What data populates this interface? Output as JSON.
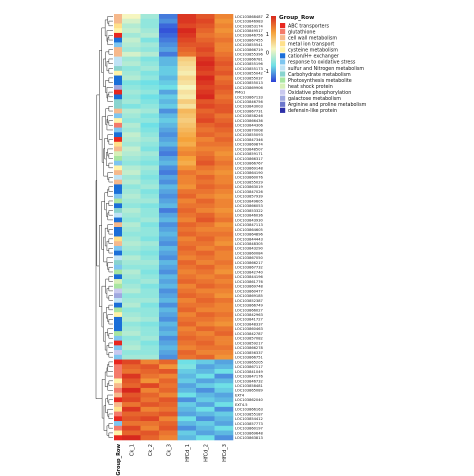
{
  "chart_data": {
    "type": "heatmap",
    "title": "",
    "columns": [
      "Group_Row",
      "Ck_1",
      "Ck_2",
      "Ck_3",
      "HfCd_1",
      "HfCd_2",
      "HfCd_3"
    ],
    "color_scale": {
      "ticks": [
        2,
        1,
        0,
        -1
      ],
      "low": "#2b3fd6",
      "mid_low": "#6fe0e6",
      "mid": "#f6f6c0",
      "mid_high": "#f5a23a",
      "high": "#d7281e"
    },
    "legend": {
      "title": "Group_Row",
      "entries": [
        {
          "name": "ABC transporters",
          "color": "#e8271f"
        },
        {
          "name": "glutathione",
          "color": "#f47a6a"
        },
        {
          "name": "cell wall metabolism",
          "color": "#f6b98c"
        },
        {
          "name": "metal ion transport",
          "color": "#ffe08a"
        },
        {
          "name": "cysteine metabolism",
          "color": "#fff3a8"
        },
        {
          "name": "cation/H+ exchanger",
          "color": "#1b6fd8"
        },
        {
          "name": "response to oxidative stress",
          "color": "#7ec6f0"
        },
        {
          "name": "sulfur and Nitrogen metabolism",
          "color": "#bfe3f5"
        },
        {
          "name": "Carbohydrate metabolism",
          "color": "#89d4cf"
        },
        {
          "name": "Photosynthesis metabolite",
          "color": "#a8e6a1"
        },
        {
          "name": "heat shock protein",
          "color": "#d7f0b8"
        },
        {
          "name": "Oxidative phosphorylation",
          "color": "#c9c9ef"
        },
        {
          "name": "galactose metabolism",
          "color": "#9fa8e0"
        },
        {
          "name": "Arginine and proline metabolism",
          "color": "#6b76cc"
        },
        {
          "name": "defensin-like protein",
          "color": "#2c2fa8"
        }
      ]
    },
    "rows": [
      {
        "label": "LOC103868487",
        "group": 3,
        "values": [
          0.0,
          -0.5,
          -1.3,
          1.5,
          1.3,
          1.0
        ]
      },
      {
        "label": "LOC103846983",
        "group": 3,
        "values": [
          -0.2,
          -0.6,
          -1.2,
          1.5,
          1.4,
          0.9
        ]
      },
      {
        "label": "LOC103853174",
        "group": 4,
        "values": [
          -0.4,
          -0.6,
          -1.4,
          1.4,
          1.3,
          1.0
        ]
      },
      {
        "label": "LOC103849517",
        "group": 5,
        "values": [
          -0.3,
          -0.5,
          -1.5,
          1.6,
          1.2,
          0.9
        ]
      },
      {
        "label": "LOC103846756",
        "group": 1,
        "values": [
          -0.5,
          -0.4,
          -1.4,
          1.5,
          1.1,
          1.0
        ]
      },
      {
        "label": "LOC103867455",
        "group": 6,
        "values": [
          -0.3,
          -0.7,
          -1.3,
          1.4,
          1.2,
          1.1
        ]
      },
      {
        "label": "LOC103855541",
        "group": 7,
        "values": [
          -0.4,
          -0.5,
          -1.2,
          1.3,
          1.3,
          1.0
        ]
      },
      {
        "label": "LOC103866719",
        "group": 3,
        "values": [
          -0.5,
          -0.6,
          -1.1,
          1.2,
          1.4,
          1.0
        ]
      },
      {
        "label": "LOC103855396",
        "group": 3,
        "values": [
          -0.2,
          -0.4,
          -1.3,
          1.1,
          1.3,
          1.1
        ]
      },
      {
        "label": "LOC103866781",
        "group": 8,
        "values": [
          -0.5,
          -0.7,
          -1.0,
          0.4,
          1.5,
          1.2
        ]
      },
      {
        "label": "LOC103855196",
        "group": 8,
        "values": [
          -0.4,
          -0.6,
          -1.0,
          0.3,
          1.6,
          1.3
        ]
      },
      {
        "label": "LOC103855173",
        "group": 9,
        "values": [
          -0.6,
          -0.5,
          -0.9,
          0.2,
          1.5,
          1.2
        ]
      },
      {
        "label": "LOC103855042",
        "group": 5,
        "values": [
          -0.5,
          -0.7,
          -0.9,
          0.1,
          1.4,
          1.3
        ]
      },
      {
        "label": "LOC103855037",
        "group": 6,
        "values": [
          -0.4,
          -0.6,
          -1.0,
          0.3,
          1.6,
          1.1
        ]
      },
      {
        "label": "LOC103855013",
        "group": 6,
        "values": [
          -0.7,
          -0.8,
          -0.9,
          0.2,
          1.5,
          1.2
        ]
      },
      {
        "label": "LOC103869906",
        "group": 13,
        "values": [
          -0.6,
          -0.7,
          -0.8,
          0.0,
          1.4,
          1.3
        ]
      },
      {
        "label": "PMG1",
        "group": 1,
        "values": [
          -0.5,
          -0.6,
          -1.1,
          0.2,
          1.5,
          1.2
        ]
      },
      {
        "label": "LOC103867133",
        "group": 6,
        "values": [
          -0.6,
          -0.8,
          -0.9,
          0.1,
          1.6,
          1.1
        ]
      },
      {
        "label": "LOC103846756",
        "group": 9,
        "values": [
          -0.5,
          -0.7,
          -1.0,
          0.4,
          1.3,
          1.2
        ]
      },
      {
        "label": "LOC103843003",
        "group": 9,
        "values": [
          -0.7,
          -0.6,
          -0.9,
          0.2,
          1.4,
          1.3
        ]
      },
      {
        "label": "LOC103867731",
        "group": 3,
        "values": [
          -0.4,
          -0.5,
          -1.2,
          0.6,
          1.2,
          1.3
        ]
      },
      {
        "label": "LOC103858246",
        "group": 7,
        "values": [
          -0.5,
          -0.7,
          -1.0,
          0.5,
          1.3,
          1.1
        ]
      },
      {
        "label": "LOC103866436",
        "group": 5,
        "values": [
          -0.6,
          -0.6,
          -0.9,
          0.4,
          1.4,
          1.2
        ]
      },
      {
        "label": "LOC103844306",
        "group": 2,
        "values": [
          -0.4,
          -0.8,
          -1.0,
          0.5,
          1.2,
          1.3
        ]
      },
      {
        "label": "LOC103870008",
        "group": 7,
        "values": [
          -0.5,
          -0.7,
          -1.1,
          0.6,
          1.1,
          1.2
        ]
      },
      {
        "label": "LOC103855093",
        "group": 6,
        "values": [
          -0.3,
          -0.6,
          -1.2,
          0.7,
          1.2,
          1.1
        ]
      },
      {
        "label": "LOC103847346",
        "group": 1,
        "values": [
          -0.4,
          -0.5,
          -1.1,
          0.8,
          1.0,
          1.2
        ]
      },
      {
        "label": "LOC103869874",
        "group": 4,
        "values": [
          -0.5,
          -0.6,
          -1.0,
          0.7,
          1.1,
          1.1
        ]
      },
      {
        "label": "LOC103848507",
        "group": 3,
        "values": [
          -0.3,
          -0.7,
          -1.2,
          0.9,
          1.0,
          1.0
        ]
      },
      {
        "label": "LOC103859171",
        "group": 11,
        "values": [
          -0.4,
          -0.5,
          -1.3,
          1.0,
          1.1,
          0.9
        ]
      },
      {
        "label": "LOC103866317",
        "group": 10,
        "values": [
          -0.5,
          -0.6,
          -1.1,
          0.8,
          1.2,
          1.0
        ]
      },
      {
        "label": "LOC103866767",
        "group": 7,
        "values": [
          -0.6,
          -0.7,
          -1.0,
          0.7,
          1.3,
          1.1
        ]
      },
      {
        "label": "LOC103869148",
        "group": 5,
        "values": [
          -0.4,
          -0.5,
          -1.2,
          0.9,
          1.1,
          1.0
        ]
      },
      {
        "label": "LOC103864190",
        "group": 3,
        "values": [
          -0.3,
          -0.6,
          -1.3,
          1.1,
          1.0,
          0.9
        ]
      },
      {
        "label": "LOC103860076",
        "group": 8,
        "values": [
          -0.5,
          -0.7,
          -1.1,
          1.0,
          1.2,
          1.0
        ]
      },
      {
        "label": "LOC103855029",
        "group": 3,
        "values": [
          -0.4,
          -0.6,
          -1.2,
          1.0,
          1.1,
          1.0
        ]
      },
      {
        "label": "LOC103863019",
        "group": 6,
        "values": [
          -0.6,
          -0.5,
          -1.0,
          0.9,
          1.2,
          1.1
        ]
      },
      {
        "label": "LOC103847026",
        "group": 6,
        "values": [
          -0.5,
          -0.7,
          -1.1,
          1.1,
          1.1,
          1.0
        ]
      },
      {
        "label": "LOC103857939",
        "group": 7,
        "values": [
          -0.4,
          -0.6,
          -1.2,
          1.2,
          1.0,
          0.9
        ]
      },
      {
        "label": "LOC103849605",
        "group": 10,
        "values": [
          -0.5,
          -0.5,
          -1.1,
          1.0,
          1.2,
          1.0
        ]
      },
      {
        "label": "LOC103866053",
        "group": 6,
        "values": [
          -0.6,
          -0.7,
          -1.0,
          1.1,
          1.1,
          1.0
        ]
      },
      {
        "label": "LOC103853322",
        "group": 9,
        "values": [
          -0.4,
          -0.6,
          -1.3,
          1.2,
          1.0,
          0.9
        ]
      },
      {
        "label": "LOC103846036",
        "group": 8,
        "values": [
          -0.5,
          -0.6,
          -1.1,
          1.1,
          1.2,
          1.0
        ]
      },
      {
        "label": "LOC103843930",
        "group": 6,
        "values": [
          -0.6,
          -0.5,
          -1.0,
          1.0,
          1.3,
          1.1
        ]
      },
      {
        "label": "LOC103847113",
        "group": 3,
        "values": [
          -0.4,
          -0.7,
          -1.2,
          1.2,
          1.1,
          0.9
        ]
      },
      {
        "label": "LOC103864605",
        "group": 6,
        "values": [
          -0.5,
          -0.6,
          -1.1,
          1.1,
          1.0,
          1.0
        ]
      },
      {
        "label": "LOC103864896",
        "group": 6,
        "values": [
          -0.6,
          -0.6,
          -1.0,
          1.2,
          1.1,
          1.1
        ]
      },
      {
        "label": "LOC103844443",
        "group": 4,
        "values": [
          -0.5,
          -0.7,
          -1.1,
          1.0,
          1.2,
          1.0
        ]
      },
      {
        "label": "LOC103848305",
        "group": 3,
        "values": [
          -0.4,
          -0.5,
          -1.2,
          1.1,
          1.1,
          0.9
        ]
      },
      {
        "label": "LOC103843290",
        "group": 7,
        "values": [
          -0.5,
          -0.6,
          -1.0,
          1.2,
          1.0,
          1.1
        ]
      },
      {
        "label": "LOC103860084",
        "group": 6,
        "values": [
          -0.6,
          -0.7,
          -1.1,
          1.1,
          1.2,
          1.0
        ]
      },
      {
        "label": "LOC103867050",
        "group": 8,
        "values": [
          -0.4,
          -0.6,
          -1.2,
          1.0,
          1.1,
          1.0
        ]
      },
      {
        "label": "LOC103866217",
        "group": 9,
        "values": [
          -0.5,
          -0.5,
          -1.0,
          1.2,
          1.0,
          1.1
        ]
      },
      {
        "label": "LOC103867732",
        "group": 7,
        "values": [
          -0.6,
          -0.6,
          -1.1,
          1.1,
          1.2,
          1.0
        ]
      },
      {
        "label": "LOC103842740",
        "group": 10,
        "values": [
          -0.4,
          -0.7,
          -1.2,
          1.0,
          1.1,
          0.9
        ]
      },
      {
        "label": "LOC103844196",
        "group": 6,
        "values": [
          -0.5,
          -0.6,
          -1.0,
          1.1,
          1.0,
          1.1
        ]
      },
      {
        "label": "LOC103861776",
        "group": 11,
        "values": [
          -0.6,
          -0.5,
          -1.1,
          1.2,
          1.1,
          1.0
        ]
      },
      {
        "label": "LOC103869748",
        "group": 10,
        "values": [
          -0.5,
          -0.7,
          -1.0,
          1.0,
          1.2,
          1.1
        ]
      },
      {
        "label": "LOC103860477",
        "group": 12,
        "values": [
          -0.4,
          -0.6,
          -1.2,
          1.1,
          1.0,
          1.0
        ]
      },
      {
        "label": "LOC103869185",
        "group": 13,
        "values": [
          -0.6,
          -0.6,
          -1.1,
          1.2,
          1.1,
          0.9
        ]
      },
      {
        "label": "LOC103852387",
        "group": 8,
        "values": [
          -0.5,
          -0.5,
          -1.0,
          1.0,
          1.2,
          1.1
        ]
      },
      {
        "label": "LOC103866749",
        "group": 6,
        "values": [
          -0.4,
          -0.7,
          -1.2,
          1.1,
          1.1,
          1.0
        ]
      },
      {
        "label": "LOC103866027",
        "group": 10,
        "values": [
          -0.6,
          -0.6,
          -1.0,
          1.2,
          1.0,
          1.0
        ]
      },
      {
        "label": "LOC103842963",
        "group": 5,
        "values": [
          -0.5,
          -0.6,
          -1.1,
          1.0,
          1.2,
          1.1
        ]
      },
      {
        "label": "LOC103841727",
        "group": 6,
        "values": [
          -0.4,
          -0.5,
          -1.2,
          1.1,
          1.1,
          1.0
        ]
      },
      {
        "label": "LOC103848337",
        "group": 6,
        "values": [
          -0.6,
          -0.7,
          -1.0,
          1.2,
          1.0,
          0.9
        ]
      },
      {
        "label": "LOC103860463",
        "group": 6,
        "values": [
          -0.5,
          -0.6,
          -1.1,
          1.0,
          1.2,
          1.1
        ]
      },
      {
        "label": "LOC103842787",
        "group": 10,
        "values": [
          -0.4,
          -0.6,
          -1.0,
          1.1,
          1.0,
          1.2
        ]
      },
      {
        "label": "LOC103857082",
        "group": 7,
        "values": [
          -0.6,
          -0.5,
          -1.2,
          1.2,
          1.1,
          1.0
        ]
      },
      {
        "label": "LOC103859217",
        "group": 1,
        "values": [
          -0.5,
          -0.7,
          -1.1,
          1.1,
          1.2,
          1.0
        ]
      },
      {
        "label": "LOC103866278",
        "group": 7,
        "values": [
          -0.4,
          -0.6,
          -1.0,
          1.0,
          1.1,
          1.1
        ]
      },
      {
        "label": "LOC103856337",
        "group": 12,
        "values": [
          -0.6,
          -0.6,
          -1.1,
          1.2,
          1.0,
          1.0
        ]
      },
      {
        "label": "LOC103866751",
        "group": 7,
        "values": [
          -0.5,
          -0.5,
          -1.2,
          1.1,
          1.2,
          0.9
        ]
      },
      {
        "label": "LOC103865205",
        "group": 1,
        "values": [
          1.4,
          1.0,
          1.2,
          -0.8,
          -0.9,
          -1.1
        ]
      },
      {
        "label": "LOC103867117",
        "group": 2,
        "values": [
          1.2,
          1.3,
          0.9,
          -0.7,
          -1.1,
          -1.0
        ]
      },
      {
        "label": "LOC103841049",
        "group": 2,
        "values": [
          1.1,
          1.2,
          1.3,
          -0.9,
          -1.0,
          -0.8
        ]
      },
      {
        "label": "LOC103847176",
        "group": 2,
        "values": [
          1.5,
          1.1,
          1.0,
          -1.0,
          -0.8,
          -1.2
        ]
      },
      {
        "label": "LOC103846732",
        "group": 5,
        "values": [
          1.3,
          0.9,
          1.2,
          -0.9,
          -1.1,
          -1.0
        ]
      },
      {
        "label": "LOC103858481",
        "group": 3,
        "values": [
          1.2,
          1.4,
          1.1,
          -1.1,
          -0.9,
          -0.8
        ]
      },
      {
        "label": "LOC103865089",
        "group": 2,
        "values": [
          1.6,
          1.0,
          1.2,
          -1.0,
          -1.2,
          -0.9
        ]
      },
      {
        "label": "EXT4",
        "group": 3,
        "values": [
          1.3,
          1.2,
          1.0,
          -0.8,
          -1.0,
          -1.1
        ]
      },
      {
        "label": "LOC103862040",
        "group": 1,
        "values": [
          1.4,
          1.1,
          1.3,
          -1.2,
          -0.9,
          -1.0
        ]
      },
      {
        "label": "EXT4.5",
        "group": 3,
        "values": [
          1.1,
          1.3,
          1.2,
          -0.9,
          -1.1,
          -0.8
        ]
      },
      {
        "label": "LOC103866163",
        "group": 4,
        "values": [
          1.5,
          1.0,
          1.1,
          -1.0,
          -0.8,
          -1.2
        ]
      },
      {
        "label": "LOC103855187",
        "group": 2,
        "values": [
          1.2,
          1.2,
          1.3,
          -1.1,
          -1.0,
          -0.9
        ]
      },
      {
        "label": "LOC103854412",
        "group": 1,
        "values": [
          1.3,
          1.4,
          1.0,
          -0.8,
          -1.2,
          -1.0
        ]
      },
      {
        "label": "LOC103857773",
        "group": 7,
        "values": [
          1.1,
          1.1,
          1.2,
          -1.0,
          -0.9,
          -1.1
        ]
      },
      {
        "label": "LOC103860197",
        "group": 2,
        "values": [
          1.4,
          1.0,
          1.3,
          -1.2,
          -1.0,
          -0.8
        ]
      },
      {
        "label": "LOC103869648",
        "group": 5,
        "values": [
          1.2,
          1.3,
          1.1,
          -0.9,
          -1.1,
          -1.0
        ]
      },
      {
        "label": "LOC103863813",
        "group": 1,
        "values": [
          1.6,
          1.2,
          1.0,
          -1.0,
          -0.8,
          -1.2
        ]
      }
    ]
  }
}
